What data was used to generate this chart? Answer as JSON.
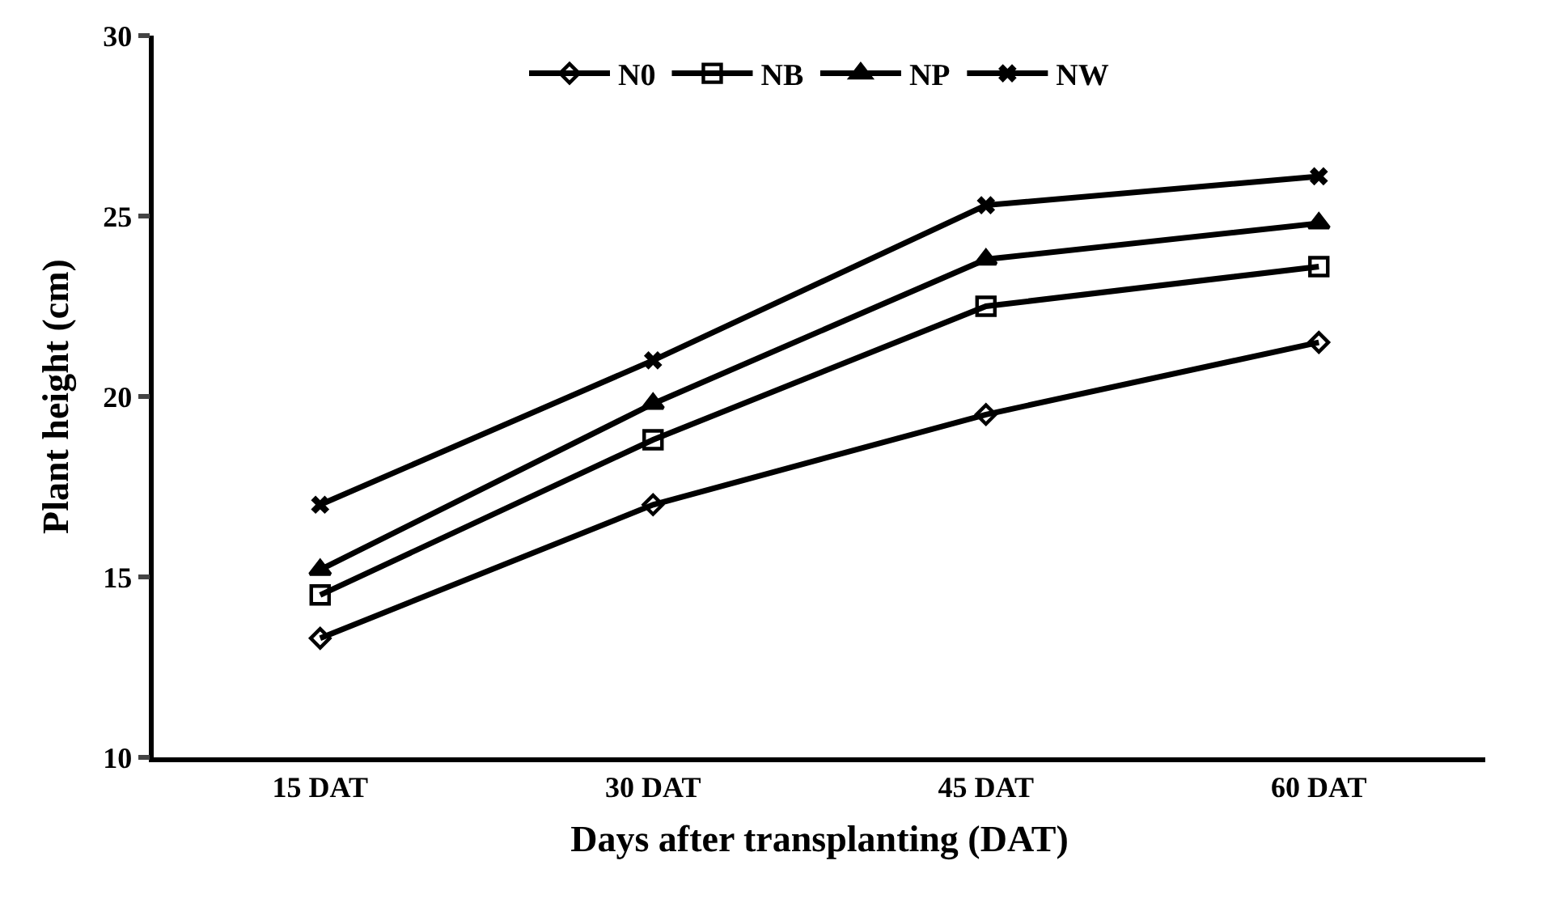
{
  "chart_data": {
    "type": "line",
    "xlabel": "Days after transplanting (DAT)",
    "ylabel": "Plant height (cm)",
    "categories": [
      "15 DAT",
      "30 DAT",
      "45 DAT",
      "60 DAT"
    ],
    "series": [
      {
        "name": "N0",
        "color": "#000000",
        "marker": "diamond",
        "values": [
          13.3,
          17.0,
          19.5,
          21.5
        ]
      },
      {
        "name": "NB",
        "color": "#000000",
        "marker": "square",
        "values": [
          14.5,
          18.8,
          22.5,
          23.6
        ]
      },
      {
        "name": "NP",
        "color": "#000000",
        "marker": "triangle",
        "values": [
          15.2,
          19.8,
          23.8,
          24.8
        ]
      },
      {
        "name": "NW",
        "color": "#000000",
        "marker": "cross",
        "values": [
          17.0,
          21.0,
          25.3,
          26.1
        ]
      }
    ],
    "ylim": [
      10,
      30
    ],
    "yticks": [
      10,
      15,
      20,
      25,
      30
    ],
    "legend": "top",
    "line_style": "solid"
  }
}
